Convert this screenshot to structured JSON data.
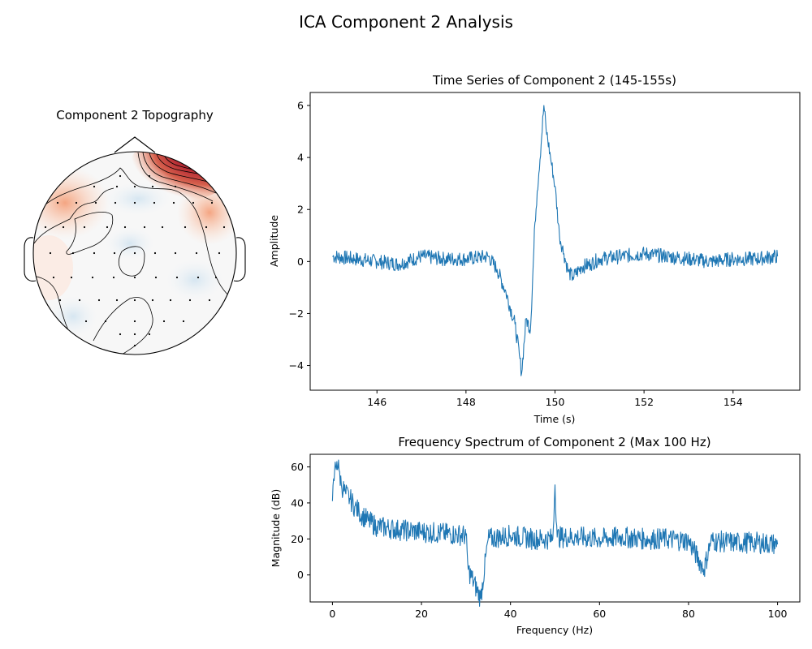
{
  "figure": {
    "title": "ICA Component 2 Analysis"
  },
  "chart_data": [
    {
      "type": "topomap",
      "title": "Component 2 Topography",
      "colormap": "RdBu_r",
      "description_values": {
        "hotspot_region": "right-frontal",
        "hotspot_color": "#67000d",
        "mild_positive_region": "left-frontal",
        "neutral_color": "#f7f7f7",
        "mild_negative_color": "#dde9f3"
      },
      "electrode_count": 59,
      "contours": true,
      "sensors_shown": true
    },
    {
      "type": "line",
      "title": "Time Series of Component 2 (145-155s)",
      "xlabel": "Time (s)",
      "ylabel": "Amplitude",
      "xlim": [
        144.5,
        155.5
      ],
      "ylim": [
        -4.95,
        6.5
      ],
      "xticks": [
        146,
        148,
        150,
        152,
        154
      ],
      "yticks": [
        -4,
        -2,
        0,
        2,
        4,
        6
      ],
      "grid": false,
      "color": "#1f77b4",
      "series": [
        {
          "x": [
            145.0,
            145.5,
            146.0,
            146.5,
            147.0,
            147.5,
            148.0,
            148.5,
            148.7,
            148.9,
            149.1,
            149.2,
            149.25,
            149.35,
            149.45,
            149.55,
            149.6,
            149.7,
            149.75,
            149.8,
            149.9,
            150.0,
            150.1,
            150.2,
            150.3,
            150.4,
            150.6,
            150.8,
            151.0,
            151.5,
            152.0,
            152.5,
            153.0,
            153.5,
            154.0,
            154.5,
            155.0
          ],
          "y": [
            0.2,
            0.1,
            0.0,
            -0.1,
            0.2,
            0.1,
            0.1,
            0.2,
            -0.3,
            -1.2,
            -2.4,
            -3.6,
            -4.3,
            -2.2,
            -2.6,
            1.5,
            2.7,
            4.8,
            6.0,
            5.1,
            4.0,
            2.9,
            1.0,
            0.3,
            -0.4,
            -0.6,
            -0.2,
            -0.1,
            0.1,
            0.2,
            0.3,
            0.2,
            0.1,
            0.0,
            0.1,
            0.1,
            0.2
          ]
        }
      ]
    },
    {
      "type": "line",
      "title": "Frequency Spectrum of Component 2 (Max 100 Hz)",
      "xlabel": "Frequency (Hz)",
      "ylabel": "Magnitude (dB)",
      "xlim": [
        -5,
        105
      ],
      "ylim": [
        -15,
        67
      ],
      "xticks": [
        0,
        20,
        40,
        60,
        80,
        100
      ],
      "yticks": [
        0,
        20,
        40,
        60
      ],
      "grid": false,
      "color": "#1f77b4",
      "series": [
        {
          "x": [
            0,
            0.5,
            1.0,
            1.5,
            2,
            3,
            4,
            5,
            6,
            8,
            10,
            15,
            20,
            25,
            30,
            30.5,
            33.3,
            35,
            40,
            45,
            49.5,
            50.0,
            50.5,
            55,
            60,
            65,
            70,
            75,
            80,
            83.5,
            85,
            90,
            95,
            100
          ],
          "y": [
            41,
            58,
            63,
            58,
            50,
            45,
            42,
            38,
            35,
            30,
            27,
            25,
            24,
            23,
            22,
            3,
            -13,
            20,
            22,
            20,
            20,
            50,
            21,
            21,
            20,
            21,
            20,
            20,
            19,
            3,
            19,
            18,
            18,
            17
          ]
        }
      ]
    }
  ]
}
